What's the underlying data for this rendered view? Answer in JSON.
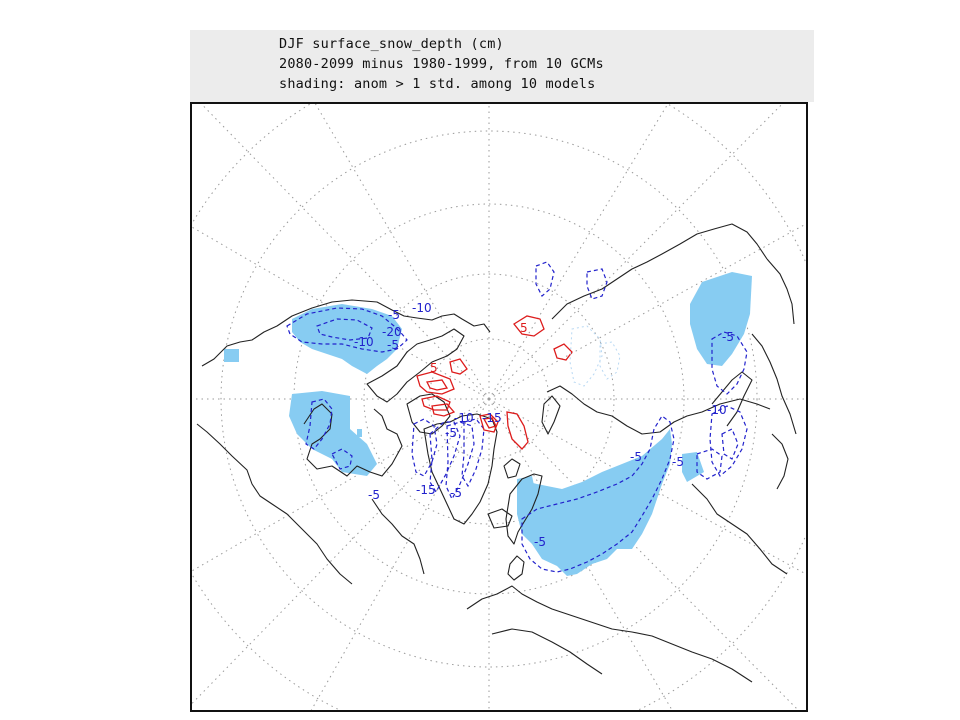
{
  "title": {
    "line1": "DJF surface_snow_depth (cm)",
    "line2": "2080-2099 minus 1980-1999, from 10 GCMs",
    "line3": "shading: anom > 1 std. among 10 models"
  },
  "colors": {
    "shading": "#87ccf2",
    "negative_contour": "#2222cc",
    "positive_contour": "#dd1c1c",
    "coastline": "#222222",
    "graticule": "#9a9a9a"
  },
  "contour_labels": {
    "neg5": "-5",
    "neg10": "-10",
    "neg15": "-15",
    "neg20": "-20",
    "pos5": "5"
  }
}
